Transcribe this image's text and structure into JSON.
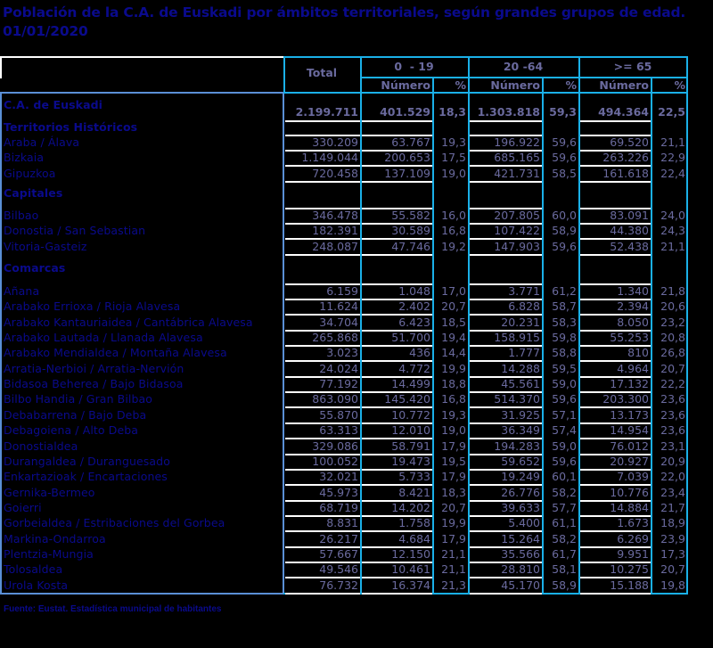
{
  "title": "Población de la C.A. de Euskadi por ámbitos territoriales, según grandes grupos de edad. 01/01/2020",
  "header": {
    "total": "Total",
    "groups": [
      "0  - 19",
      "20 -64",
      ">= 65"
    ],
    "sub_numero": "Número",
    "sub_pct": "%"
  },
  "colors": {
    "title": "#0a0a8c",
    "values": "#6a6a9e",
    "grid_blue": "#1ab0e8",
    "grid_light_blue": "#5a8fd6",
    "background": "#000000"
  },
  "rows": [
    {
      "label": "C.A. de Euskadi",
      "type": "total",
      "total": "2.199.711",
      "n0_19": "401.529",
      "p0_19": "18,3",
      "n20_64": "1.303.818",
      "p20_64": "59,3",
      "n65": "494.364",
      "p65": "22,5"
    },
    {
      "label": "Territorios Históricos",
      "type": "section"
    },
    {
      "label": "Araba / Álava",
      "type": "data",
      "total": "330.209",
      "n0_19": "63.767",
      "p0_19": "19,3",
      "n20_64": "196.922",
      "p20_64": "59,6",
      "n65": "69.520",
      "p65": "21,1"
    },
    {
      "label": "Bizkaia",
      "type": "data",
      "total": "1.149.044",
      "n0_19": "200.653",
      "p0_19": "17,5",
      "n20_64": "685.165",
      "p20_64": "59,6",
      "n65": "263.226",
      "p65": "22,9"
    },
    {
      "label": "Gipuzkoa",
      "type": "data",
      "total": "720.458",
      "n0_19": "137.109",
      "p0_19": "19,0",
      "n20_64": "421.731",
      "p20_64": "58,5",
      "n65": "161.618",
      "p65": "22,4"
    },
    {
      "label": "Capitales",
      "type": "section"
    },
    {
      "label": "Bilbao",
      "type": "data",
      "total": "346.478",
      "n0_19": "55.582",
      "p0_19": "16,0",
      "n20_64": "207.805",
      "p20_64": "60,0",
      "n65": "83.091",
      "p65": "24,0"
    },
    {
      "label": "Donostia / San Sebastian",
      "type": "data",
      "total": "182.391",
      "n0_19": "30.589",
      "p0_19": "16,8",
      "n20_64": "107.422",
      "p20_64": "58,9",
      "n65": "44.380",
      "p65": "24,3"
    },
    {
      "label": "Vitoria-Gasteiz",
      "type": "data",
      "total": "248.087",
      "n0_19": "47.746",
      "p0_19": "19,2",
      "n20_64": "147.903",
      "p20_64": "59,6",
      "n65": "52.438",
      "p65": "21,1"
    },
    {
      "label": "Comarcas",
      "type": "section"
    },
    {
      "label": "Añana",
      "type": "data",
      "total": "6.159",
      "n0_19": "1.048",
      "p0_19": "17,0",
      "n20_64": "3.771",
      "p20_64": "61,2",
      "n65": "1.340",
      "p65": "21,8"
    },
    {
      "label": "Arabako Errioxa / Rioja Alavesa",
      "type": "data",
      "total": "11.624",
      "n0_19": "2.402",
      "p0_19": "20,7",
      "n20_64": "6.828",
      "p20_64": "58,7",
      "n65": "2.394",
      "p65": "20,6"
    },
    {
      "label": "Arabako Kantauriaidea / Cantábrica Alavesa",
      "type": "data",
      "total": "34.704",
      "n0_19": "6.423",
      "p0_19": "18,5",
      "n20_64": "20.231",
      "p20_64": "58,3",
      "n65": "8.050",
      "p65": "23,2"
    },
    {
      "label": "Arabako Lautada / Llanada Alavesa",
      "type": "data",
      "total": "265.868",
      "n0_19": "51.700",
      "p0_19": "19,4",
      "n20_64": "158.915",
      "p20_64": "59,8",
      "n65": "55.253",
      "p65": "20,8"
    },
    {
      "label": "Arabako Mendialdea / Montaña Alavesa",
      "type": "data",
      "total": "3.023",
      "n0_19": "436",
      "p0_19": "14,4",
      "n20_64": "1.777",
      "p20_64": "58,8",
      "n65": "810",
      "p65": "26,8"
    },
    {
      "label": "Arratia-Nerbioi / Arratia-Nervión",
      "type": "data",
      "total": "24.024",
      "n0_19": "4.772",
      "p0_19": "19,9",
      "n20_64": "14.288",
      "p20_64": "59,5",
      "n65": "4.964",
      "p65": "20,7"
    },
    {
      "label": "Bidasoa Beherea / Bajo Bidasoa",
      "type": "data",
      "total": "77.192",
      "n0_19": "14.499",
      "p0_19": "18,8",
      "n20_64": "45.561",
      "p20_64": "59,0",
      "n65": "17.132",
      "p65": "22,2"
    },
    {
      "label": "Bilbo Handia / Gran Bilbao",
      "type": "data",
      "total": "863.090",
      "n0_19": "145.420",
      "p0_19": "16,8",
      "n20_64": "514.370",
      "p20_64": "59,6",
      "n65": "203.300",
      "p65": "23,6"
    },
    {
      "label": "Debabarrena / Bajo Deba",
      "type": "data",
      "total": "55.870",
      "n0_19": "10.772",
      "p0_19": "19,3",
      "n20_64": "31.925",
      "p20_64": "57,1",
      "n65": "13.173",
      "p65": "23,6"
    },
    {
      "label": "Debagoiena / Alto Deba",
      "type": "data",
      "total": "63.313",
      "n0_19": "12.010",
      "p0_19": "19,0",
      "n20_64": "36.349",
      "p20_64": "57,4",
      "n65": "14.954",
      "p65": "23,6"
    },
    {
      "label": "Donostialdea",
      "type": "data",
      "total": "329.086",
      "n0_19": "58.791",
      "p0_19": "17,9",
      "n20_64": "194.283",
      "p20_64": "59,0",
      "n65": "76.012",
      "p65": "23,1"
    },
    {
      "label": "Durangaldea / Duranguesado",
      "type": "data",
      "total": "100.052",
      "n0_19": "19.473",
      "p0_19": "19,5",
      "n20_64": "59.652",
      "p20_64": "59,6",
      "n65": "20.927",
      "p65": "20,9"
    },
    {
      "label": "Enkartazioak / Encartaciones",
      "type": "data",
      "total": "32.021",
      "n0_19": "5.733",
      "p0_19": "17,9",
      "n20_64": "19.249",
      "p20_64": "60,1",
      "n65": "7.039",
      "p65": "22,0"
    },
    {
      "label": "Gernika-Bermeo",
      "type": "data",
      "total": "45.973",
      "n0_19": "8.421",
      "p0_19": "18,3",
      "n20_64": "26.776",
      "p20_64": "58,2",
      "n65": "10.776",
      "p65": "23,4"
    },
    {
      "label": "Goierri",
      "type": "data",
      "total": "68.719",
      "n0_19": "14.202",
      "p0_19": "20,7",
      "n20_64": "39.633",
      "p20_64": "57,7",
      "n65": "14.884",
      "p65": "21,7"
    },
    {
      "label": "Gorbeialdea / Estribaciones del Gorbea",
      "type": "data",
      "total": "8.831",
      "n0_19": "1.758",
      "p0_19": "19,9",
      "n20_64": "5.400",
      "p20_64": "61,1",
      "n65": "1.673",
      "p65": "18,9"
    },
    {
      "label": "Markina-Ondarroa",
      "type": "data",
      "total": "26.217",
      "n0_19": "4.684",
      "p0_19": "17,9",
      "n20_64": "15.264",
      "p20_64": "58,2",
      "n65": "6.269",
      "p65": "23,9"
    },
    {
      "label": "Plentzia-Mungia",
      "type": "data",
      "total": "57.667",
      "n0_19": "12.150",
      "p0_19": "21,1",
      "n20_64": "35.566",
      "p20_64": "61,7",
      "n65": "9.951",
      "p65": "17,3"
    },
    {
      "label": "Tolosaldea",
      "type": "data",
      "total": "49.546",
      "n0_19": "10.461",
      "p0_19": "21,1",
      "n20_64": "28.810",
      "p20_64": "58,1",
      "n65": "10.275",
      "p65": "20,7"
    },
    {
      "label": "Urola Kosta",
      "type": "data",
      "total": "76.732",
      "n0_19": "16.374",
      "p0_19": "21,3",
      "n20_64": "45.170",
      "p20_64": "58,9",
      "n65": "15.188",
      "p65": "19,8"
    }
  ],
  "footer": "Fuente: Eustat. Estadística municipal de habitantes"
}
